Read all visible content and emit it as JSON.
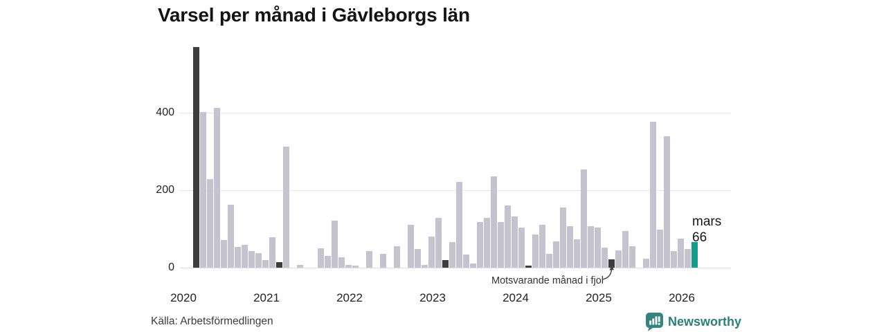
{
  "title": "Varsel per månad i Gävleborgs län",
  "source_label": "Källa: Arbetsförmedlingen",
  "annotation": {
    "text": "Motsvarande månad i fjol"
  },
  "highlight": {
    "month": "mars",
    "value": "66"
  },
  "brand": {
    "name": "Newsworthy"
  },
  "colors": {
    "bar": "#c5c3d0",
    "dark": "#3e3e3e",
    "accent": "#189b8c",
    "grid": "#e6e5ee",
    "baseline": "#dcdbe6",
    "brand_teal": "#2e7e79",
    "icon_teal": "#37837f"
  },
  "chart_data": {
    "type": "bar",
    "title": "Varsel per månad i Gävleborgs län",
    "xlabel": "",
    "ylabel": "",
    "ylim": [
      0,
      575
    ],
    "yticks": [
      0,
      200,
      400
    ],
    "grid": "horizontal",
    "year_labels": [
      "2020",
      "2021",
      "2022",
      "2023",
      "2024",
      "2025",
      "2026"
    ],
    "bar_variants": {
      "normal": "month value",
      "dark": "same month (mars) in earlier years — annotated 'Motsvarande månad i fjol'",
      "accent": "current month, labelled 'mars 66'"
    },
    "columns": [
      "month",
      "value",
      "variant"
    ],
    "points": [
      [
        "2020-03",
        570,
        "dark"
      ],
      [
        "2020-04",
        402
      ],
      [
        "2020-05",
        228
      ],
      [
        "2020-06",
        413
      ],
      [
        "2020-07",
        71
      ],
      [
        "2020-08",
        162
      ],
      [
        "2020-09",
        54
      ],
      [
        "2020-10",
        59
      ],
      [
        "2020-11",
        43
      ],
      [
        "2020-12",
        37
      ],
      [
        "2021-01",
        20
      ],
      [
        "2021-02",
        79
      ],
      [
        "2021-03",
        15,
        "dark"
      ],
      [
        "2021-04",
        313
      ],
      [
        "2021-05",
        0
      ],
      [
        "2021-06",
        7
      ],
      [
        "2021-07",
        0
      ],
      [
        "2021-08",
        0
      ],
      [
        "2021-09",
        50
      ],
      [
        "2021-10",
        30
      ],
      [
        "2021-11",
        122
      ],
      [
        "2021-12",
        26
      ],
      [
        "2022-01",
        8
      ],
      [
        "2022-02",
        6
      ],
      [
        "2022-03",
        0,
        "dark"
      ],
      [
        "2022-04",
        42
      ],
      [
        "2022-05",
        0
      ],
      [
        "2022-06",
        35
      ],
      [
        "2022-07",
        0
      ],
      [
        "2022-08",
        56
      ],
      [
        "2022-09",
        0
      ],
      [
        "2022-10",
        111
      ],
      [
        "2022-11",
        48
      ],
      [
        "2022-12",
        7
      ],
      [
        "2023-01",
        81
      ],
      [
        "2023-02",
        129
      ],
      [
        "2023-03",
        20,
        "dark"
      ],
      [
        "2023-04",
        66
      ],
      [
        "2023-05",
        222
      ],
      [
        "2023-06",
        34
      ],
      [
        "2023-07",
        10
      ],
      [
        "2023-08",
        117
      ],
      [
        "2023-09",
        128
      ],
      [
        "2023-10",
        236
      ],
      [
        "2023-11",
        117
      ],
      [
        "2023-12",
        161
      ],
      [
        "2024-01",
        133
      ],
      [
        "2024-02",
        104
      ],
      [
        "2024-03",
        6,
        "dark"
      ],
      [
        "2024-04",
        86
      ],
      [
        "2024-05",
        111
      ],
      [
        "2024-06",
        36
      ],
      [
        "2024-07",
        67
      ],
      [
        "2024-08",
        156
      ],
      [
        "2024-09",
        108
      ],
      [
        "2024-10",
        73
      ],
      [
        "2024-11",
        254
      ],
      [
        "2024-12",
        107
      ],
      [
        "2025-01",
        104
      ],
      [
        "2025-02",
        52
      ],
      [
        "2025-03",
        22,
        "dark"
      ],
      [
        "2025-04",
        45
      ],
      [
        "2025-05",
        95
      ],
      [
        "2025-06",
        55
      ],
      [
        "2025-07",
        0
      ],
      [
        "2025-08",
        24
      ],
      [
        "2025-09",
        377
      ],
      [
        "2025-10",
        99
      ],
      [
        "2025-11",
        339
      ],
      [
        "2025-12",
        43
      ],
      [
        "2026-01",
        75
      ],
      [
        "2026-02",
        48
      ],
      [
        "2026-03",
        66,
        "accent"
      ]
    ]
  }
}
